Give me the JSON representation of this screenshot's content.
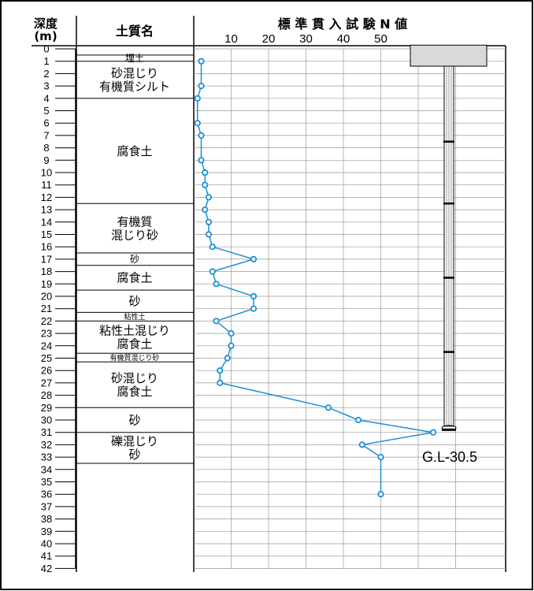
{
  "header": {
    "depth_title": "深度",
    "depth_unit": "(m)",
    "soil_title": "土質名",
    "n_title": "標 準 貫 入 試 験 N 値"
  },
  "chart_data": {
    "type": "line",
    "title": "標準貫入試験 N 値",
    "xlabel": "N値",
    "ylabel": "深度 (m)",
    "x_ticks": [
      10,
      20,
      30,
      40,
      50
    ],
    "xlim": [
      0,
      80
    ],
    "ylim": [
      0,
      42
    ],
    "y_ticks": [
      0,
      1,
      2,
      3,
      4,
      5,
      6,
      7,
      8,
      9,
      10,
      11,
      12,
      13,
      14,
      15,
      16,
      17,
      18,
      19,
      20,
      21,
      22,
      23,
      24,
      25,
      26,
      27,
      28,
      29,
      30,
      31,
      32,
      33,
      34,
      35,
      36,
      37,
      38,
      39,
      40,
      41,
      42
    ],
    "grid": true,
    "series": [
      {
        "name": "",
        "color": "#1e8fd6",
        "points": [
          {
            "depth": 1,
            "n": 2
          },
          {
            "depth": 3,
            "n": 2
          },
          {
            "depth": 4,
            "n": 1
          },
          {
            "depth": 6,
            "n": 1
          },
          {
            "depth": 7,
            "n": 2
          },
          {
            "depth": 9,
            "n": 2
          },
          {
            "depth": 10,
            "n": 3
          },
          {
            "depth": 11,
            "n": 3
          },
          {
            "depth": 12,
            "n": 4
          },
          {
            "depth": 13,
            "n": 3
          },
          {
            "depth": 14,
            "n": 4
          },
          {
            "depth": 15,
            "n": 4
          },
          {
            "depth": 16,
            "n": 5
          },
          {
            "depth": 17,
            "n": 16
          },
          {
            "depth": 18,
            "n": 5
          },
          {
            "depth": 19,
            "n": 6
          },
          {
            "depth": 20,
            "n": 16
          },
          {
            "depth": 21,
            "n": 16
          },
          {
            "depth": 22,
            "n": 6
          },
          {
            "depth": 23,
            "n": 10
          },
          {
            "depth": 24,
            "n": 10
          },
          {
            "depth": 25,
            "n": 9
          },
          {
            "depth": 26,
            "n": 7
          },
          {
            "depth": 27,
            "n": 7
          },
          {
            "depth": 29,
            "n": 36
          },
          {
            "depth": 30,
            "n": 44
          },
          {
            "depth": 31,
            "n": 64
          },
          {
            "depth": 32,
            "n": 45
          },
          {
            "depth": 33,
            "n": 50
          },
          {
            "depth": 36,
            "n": 50
          }
        ]
      }
    ],
    "soil_layers": [
      {
        "name": [
          "埋土"
        ],
        "top": 0.5,
        "bottom": 1,
        "size": "small"
      },
      {
        "name": [
          "砂混じり",
          "有機質シルト"
        ],
        "top": 1,
        "bottom": 4,
        "size": "normal"
      },
      {
        "name": [
          "腐食土"
        ],
        "top": 4,
        "bottom": 12.5,
        "size": "normal"
      },
      {
        "name": [
          "有機質",
          "混じり砂"
        ],
        "top": 12.5,
        "bottom": 16.5,
        "size": "normal"
      },
      {
        "name": [
          "砂"
        ],
        "top": 16.5,
        "bottom": 17.5,
        "size": "small"
      },
      {
        "name": [
          "腐食土"
        ],
        "top": 17.5,
        "bottom": 19.5,
        "size": "normal"
      },
      {
        "name": [
          "砂"
        ],
        "top": 19.5,
        "bottom": 21.3,
        "size": "normal"
      },
      {
        "name": [
          "粘性土"
        ],
        "top": 21.3,
        "bottom": 22,
        "size": "tiny"
      },
      {
        "name": [
          "粘性土混じり",
          "腐食土"
        ],
        "top": 22,
        "bottom": 24.6,
        "size": "normal"
      },
      {
        "name": [
          "有機質混じり砂"
        ],
        "top": 24.6,
        "bottom": 25.3,
        "size": "tiny"
      },
      {
        "name": [
          "砂混じり",
          "腐食土"
        ],
        "top": 25.3,
        "bottom": 29,
        "size": "normal"
      },
      {
        "name": [
          "砂"
        ],
        "top": 29,
        "bottom": 31,
        "size": "normal"
      },
      {
        "name": [
          "礫混じり",
          "砂"
        ],
        "top": 31,
        "bottom": 33.5,
        "size": "normal"
      }
    ],
    "pile": {
      "cap_top": -0.3,
      "cap_bottom": 1.4,
      "shaft_bottom": 30.5,
      "label": "G.L-30.5"
    }
  }
}
